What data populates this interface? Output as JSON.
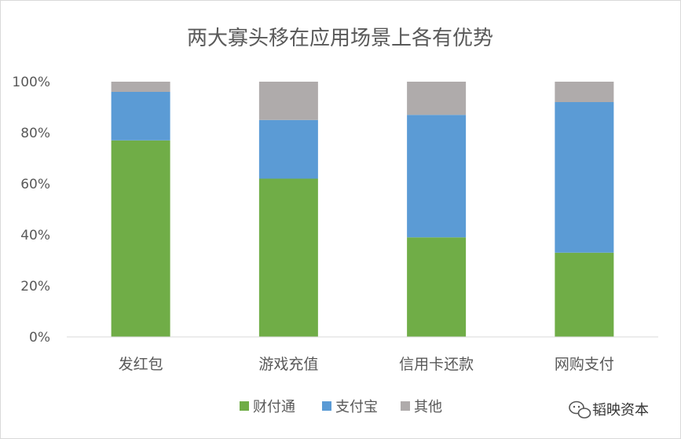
{
  "chart_data": {
    "type": "bar",
    "stacked": true,
    "title": "两大寡头移在应用场景上各有优势",
    "categories": [
      "发红包",
      "游戏充值",
      "信用卡还款",
      "网购支付"
    ],
    "series": [
      {
        "name": "财付通",
        "color": "#70ad47",
        "values": [
          77,
          62,
          39,
          33
        ]
      },
      {
        "name": "支付宝",
        "color": "#5b9bd5",
        "values": [
          19,
          23,
          48,
          59
        ]
      },
      {
        "name": "其他",
        "color": "#afabab",
        "values": [
          4,
          15,
          13,
          8
        ]
      }
    ],
    "y_ticks": [
      "0%",
      "20%",
      "40%",
      "60%",
      "80%",
      "100%"
    ],
    "ylim": [
      0,
      100
    ],
    "grid": false,
    "legend_position": "bottom"
  },
  "watermark": {
    "text": "韬映资本",
    "icon": "wechat-icon"
  }
}
